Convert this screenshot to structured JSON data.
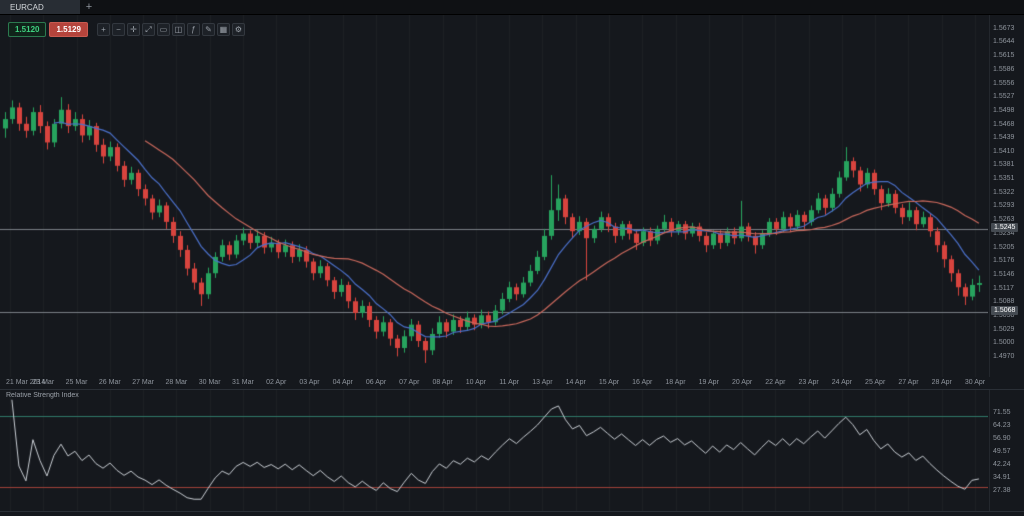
{
  "tabbar": {
    "active_tab": "EURCAD",
    "add_label": "+"
  },
  "quote": {
    "bid": "1.5120",
    "ask": "1.5129"
  },
  "toolbar": {
    "icons": [
      {
        "name": "zoom-in-icon",
        "glyph": "+"
      },
      {
        "name": "zoom-out-icon",
        "glyph": "−"
      },
      {
        "name": "crosshair-icon",
        "glyph": "✛"
      },
      {
        "name": "pan-icon",
        "glyph": "⤢"
      },
      {
        "name": "chart-type-icon",
        "glyph": "▭"
      },
      {
        "name": "timeframe-icon",
        "glyph": "◫"
      },
      {
        "name": "indicators-icon",
        "glyph": "ƒ"
      },
      {
        "name": "drawing-tools-icon",
        "glyph": "✎"
      },
      {
        "name": "grid-icon",
        "glyph": "▦"
      },
      {
        "name": "settings-icon",
        "glyph": "⚙"
      }
    ]
  },
  "colors": {
    "chart_bg": "#15181d",
    "grid": "rgba(255,255,255,0.035)",
    "candle_up": "#27a35e",
    "candle_down": "#d8443e",
    "level_line": "#7a7f86",
    "rsi_line": "#c9ced4",
    "overbought_line": "#2f7868",
    "oversold_line": "#a04038",
    "axis_text": "#8f959d",
    "sell_accent": "#3fd07f",
    "buy_accent": "#b5443c"
  },
  "chart_data": [
    {
      "type": "candlestick",
      "symbol": "EURCAD",
      "ylim": [
        1.4945,
        1.569
      ],
      "y_ticks": [
        "1.5673",
        "1.5644",
        "1.5615",
        "1.5586",
        "1.5556",
        "1.5527",
        "1.5498",
        "1.5468",
        "1.5439",
        "1.5410",
        "1.5381",
        "1.5351",
        "1.5322",
        "1.5293",
        "1.5263",
        "1.5234",
        "1.5205",
        "1.5176",
        "1.5146",
        "1.5117",
        "1.5088",
        "1.5058",
        "1.5029",
        "1.5000",
        "1.4970"
      ],
      "x_ticks": [
        "21 Mar 2014",
        "23 Mar",
        "25 Mar",
        "26 Mar",
        "27 Mar",
        "28 Mar",
        "30 Mar",
        "31 Mar",
        "02 Apr",
        "03 Apr",
        "04 Apr",
        "06 Apr",
        "07 Apr",
        "08 Apr",
        "10 Apr",
        "11 Apr",
        "13 Apr",
        "14 Apr",
        "15 Apr",
        "16 Apr",
        "18 Apr",
        "19 Apr",
        "20 Apr",
        "22 Apr",
        "23 Apr",
        "24 Apr",
        "25 Apr",
        "27 Apr",
        "28 Apr",
        "30 Apr"
      ],
      "levels": [
        {
          "price": 1.5245,
          "label": "1.5245"
        },
        {
          "price": 1.5068,
          "label": "1.5068"
        }
      ],
      "moving_averages": [
        {
          "name": "ma-fast",
          "period": 8,
          "color": "#4a6fc8"
        },
        {
          "name": "ma-slow",
          "period": 21,
          "color": "#c9685c"
        }
      ],
      "candles": [
        [
          1.546,
          1.5495,
          1.544,
          1.548
        ],
        [
          1.548,
          1.552,
          1.547,
          1.5505
        ],
        [
          1.5505,
          1.5515,
          1.5455,
          1.547
        ],
        [
          1.547,
          1.5485,
          1.544,
          1.5455
        ],
        [
          1.5455,
          1.5505,
          1.5445,
          1.5495
        ],
        [
          1.5495,
          1.551,
          1.545,
          1.5465
        ],
        [
          1.5465,
          1.5475,
          1.5415,
          1.543
        ],
        [
          1.543,
          1.548,
          1.542,
          1.547
        ],
        [
          1.547,
          1.5527,
          1.546,
          1.55
        ],
        [
          1.55,
          1.5512,
          1.545,
          1.5465
        ],
        [
          1.5465,
          1.5495,
          1.5455,
          1.548
        ],
        [
          1.548,
          1.549,
          1.543,
          1.5445
        ],
        [
          1.5445,
          1.5478,
          1.5435,
          1.5465
        ],
        [
          1.5465,
          1.5472,
          1.541,
          1.5425
        ],
        [
          1.5425,
          1.5438,
          1.5385,
          1.54
        ],
        [
          1.54,
          1.5432,
          1.539,
          1.542
        ],
        [
          1.542,
          1.5428,
          1.5368,
          1.538
        ],
        [
          1.538,
          1.539,
          1.5335,
          1.535
        ],
        [
          1.535,
          1.5378,
          1.534,
          1.5365
        ],
        [
          1.5365,
          1.5372,
          1.5315,
          1.533
        ],
        [
          1.533,
          1.534,
          1.5295,
          1.531
        ],
        [
          1.531,
          1.5318,
          1.5265,
          1.528
        ],
        [
          1.528,
          1.5308,
          1.527,
          1.5295
        ],
        [
          1.5295,
          1.5302,
          1.5245,
          1.526
        ],
        [
          1.526,
          1.527,
          1.5215,
          1.523
        ],
        [
          1.523,
          1.524,
          1.5185,
          1.52
        ],
        [
          1.52,
          1.521,
          1.5145,
          1.516
        ],
        [
          1.516,
          1.5172,
          1.5115,
          1.513
        ],
        [
          1.513,
          1.514,
          1.508,
          1.5105
        ],
        [
          1.5105,
          1.5162,
          1.5095,
          1.515
        ],
        [
          1.515,
          1.5195,
          1.514,
          1.5185
        ],
        [
          1.5185,
          1.5222,
          1.5175,
          1.521
        ],
        [
          1.521,
          1.5218,
          1.5178,
          1.519
        ],
        [
          1.519,
          1.5232,
          1.5182,
          1.522
        ],
        [
          1.522,
          1.5248,
          1.521,
          1.5235
        ],
        [
          1.5235,
          1.5242,
          1.5202,
          1.5215
        ],
        [
          1.5215,
          1.5242,
          1.5205,
          1.523
        ],
        [
          1.523,
          1.5238,
          1.5192,
          1.5205
        ],
        [
          1.5205,
          1.5228,
          1.5195,
          1.5215
        ],
        [
          1.5215,
          1.5222,
          1.5182,
          1.5195
        ],
        [
          1.5195,
          1.5222,
          1.5185,
          1.521
        ],
        [
          1.521,
          1.5218,
          1.5172,
          1.5185
        ],
        [
          1.5185,
          1.5212,
          1.5175,
          1.52
        ],
        [
          1.52,
          1.5208,
          1.5162,
          1.5175
        ],
        [
          1.5175,
          1.5182,
          1.5135,
          1.515
        ],
        [
          1.515,
          1.5178,
          1.514,
          1.5165
        ],
        [
          1.5165,
          1.5172,
          1.5122,
          1.5135
        ],
        [
          1.5135,
          1.5142,
          1.5095,
          1.511
        ],
        [
          1.511,
          1.5138,
          1.51,
          1.5125
        ],
        [
          1.5125,
          1.5132,
          1.5075,
          1.509
        ],
        [
          1.509,
          1.5098,
          1.505,
          1.5065
        ],
        [
          1.5065,
          1.5092,
          1.5055,
          1.508
        ],
        [
          1.508,
          1.5088,
          1.5035,
          1.505
        ],
        [
          1.505,
          1.5058,
          1.501,
          1.5025
        ],
        [
          1.5025,
          1.5058,
          1.5015,
          1.5045
        ],
        [
          1.5045,
          1.5052,
          1.4995,
          1.501
        ],
        [
          1.501,
          1.5018,
          1.4972,
          1.499
        ],
        [
          1.499,
          1.5028,
          1.498,
          1.5015
        ],
        [
          1.5015,
          1.5052,
          1.5005,
          1.504
        ],
        [
          1.504,
          1.5048,
          1.4992,
          1.5005
        ],
        [
          1.5005,
          1.5012,
          1.4958,
          1.4985
        ],
        [
          1.4985,
          1.5032,
          1.4975,
          1.502
        ],
        [
          1.502,
          1.5058,
          1.5012,
          1.5045
        ],
        [
          1.5045,
          1.5052,
          1.5012,
          1.5025
        ],
        [
          1.5025,
          1.5062,
          1.5018,
          1.505
        ],
        [
          1.505,
          1.5058,
          1.5022,
          1.5035
        ],
        [
          1.5035,
          1.5068,
          1.5028,
          1.5055
        ],
        [
          1.5055,
          1.5062,
          1.5028,
          1.504
        ],
        [
          1.504,
          1.5072,
          1.5032,
          1.506
        ],
        [
          1.506,
          1.5068,
          1.5032,
          1.5045
        ],
        [
          1.5045,
          1.5082,
          1.5038,
          1.507
        ],
        [
          1.507,
          1.5108,
          1.5062,
          1.5095
        ],
        [
          1.5095,
          1.5132,
          1.5088,
          1.512
        ],
        [
          1.512,
          1.5128,
          1.5092,
          1.5105
        ],
        [
          1.5105,
          1.5142,
          1.5098,
          1.513
        ],
        [
          1.513,
          1.5168,
          1.5122,
          1.5155
        ],
        [
          1.5155,
          1.5198,
          1.5148,
          1.5185
        ],
        [
          1.5185,
          1.5245,
          1.5178,
          1.523
        ],
        [
          1.523,
          1.536,
          1.5222,
          1.5285
        ],
        [
          1.5285,
          1.534,
          1.5262,
          1.531
        ],
        [
          1.531,
          1.5318,
          1.5255,
          1.527
        ],
        [
          1.527,
          1.5278,
          1.5225,
          1.524
        ],
        [
          1.524,
          1.5272,
          1.5232,
          1.526
        ],
        [
          1.526,
          1.5268,
          1.5135,
          1.5225
        ],
        [
          1.5225,
          1.5252,
          1.5215,
          1.5245
        ],
        [
          1.5245,
          1.5282,
          1.5238,
          1.527
        ],
        [
          1.527,
          1.5278,
          1.5238,
          1.525
        ],
        [
          1.525,
          1.5258,
          1.5215,
          1.523
        ],
        [
          1.523,
          1.5262,
          1.5222,
          1.5255
        ],
        [
          1.5255,
          1.5262,
          1.5222,
          1.5235
        ],
        [
          1.5235,
          1.5242,
          1.52,
          1.5215
        ],
        [
          1.5215,
          1.5248,
          1.5208,
          1.524
        ],
        [
          1.524,
          1.5248,
          1.5208,
          1.522
        ],
        [
          1.522,
          1.5252,
          1.5212,
          1.5245
        ],
        [
          1.5245,
          1.5275,
          1.5238,
          1.526
        ],
        [
          1.526,
          1.5268,
          1.5228,
          1.524
        ],
        [
          1.524,
          1.5262,
          1.5232,
          1.5255
        ],
        [
          1.5255,
          1.5262,
          1.5222,
          1.5235
        ],
        [
          1.5235,
          1.5258,
          1.5228,
          1.525
        ],
        [
          1.525,
          1.5258,
          1.5218,
          1.523
        ],
        [
          1.523,
          1.5238,
          1.5195,
          1.521
        ],
        [
          1.521,
          1.5242,
          1.5202,
          1.5235
        ],
        [
          1.5235,
          1.5242,
          1.5202,
          1.5215
        ],
        [
          1.5215,
          1.5248,
          1.5208,
          1.524
        ],
        [
          1.524,
          1.5248,
          1.5212,
          1.5225
        ],
        [
          1.5225,
          1.5305,
          1.5218,
          1.525
        ],
        [
          1.525,
          1.5258,
          1.5218,
          1.523
        ],
        [
          1.523,
          1.5238,
          1.5192,
          1.521
        ],
        [
          1.521,
          1.5242,
          1.5202,
          1.5235
        ],
        [
          1.5235,
          1.5268,
          1.5228,
          1.526
        ],
        [
          1.526,
          1.5268,
          1.5232,
          1.5245
        ],
        [
          1.5245,
          1.5282,
          1.5238,
          1.527
        ],
        [
          1.527,
          1.5278,
          1.5238,
          1.525
        ],
        [
          1.525,
          1.5285,
          1.5242,
          1.5275
        ],
        [
          1.5275,
          1.5282,
          1.5245,
          1.526
        ],
        [
          1.526,
          1.5295,
          1.5252,
          1.5285
        ],
        [
          1.5285,
          1.5322,
          1.5278,
          1.531
        ],
        [
          1.531,
          1.5318,
          1.5275,
          1.529
        ],
        [
          1.529,
          1.5332,
          1.5282,
          1.532
        ],
        [
          1.532,
          1.5368,
          1.5312,
          1.5355
        ],
        [
          1.5355,
          1.542,
          1.5348,
          1.539
        ],
        [
          1.539,
          1.5398,
          1.5355,
          1.537
        ],
        [
          1.537,
          1.5378,
          1.5325,
          1.534
        ],
        [
          1.534,
          1.5375,
          1.5332,
          1.5365
        ],
        [
          1.5365,
          1.5372,
          1.5318,
          1.533
        ],
        [
          1.533,
          1.5338,
          1.5285,
          1.53
        ],
        [
          1.53,
          1.5332,
          1.5292,
          1.532
        ],
        [
          1.532,
          1.5328,
          1.5278,
          1.529
        ],
        [
          1.529,
          1.5298,
          1.5255,
          1.527
        ],
        [
          1.527,
          1.5302,
          1.5262,
          1.5285
        ],
        [
          1.5285,
          1.5292,
          1.5242,
          1.5255
        ],
        [
          1.5255,
          1.5282,
          1.5248,
          1.527
        ],
        [
          1.527,
          1.5278,
          1.5228,
          1.524
        ],
        [
          1.524,
          1.5248,
          1.5195,
          1.521
        ],
        [
          1.521,
          1.5218,
          1.5162,
          1.518
        ],
        [
          1.518,
          1.5188,
          1.5132,
          1.515
        ],
        [
          1.515,
          1.5158,
          1.5102,
          1.512
        ],
        [
          1.512,
          1.5128,
          1.5082,
          1.51
        ],
        [
          1.51,
          1.5138,
          1.5092,
          1.5125
        ],
        [
          1.5125,
          1.5145,
          1.511,
          1.5129
        ]
      ]
    },
    {
      "type": "line",
      "title": "Relative Strength Index",
      "derived": "RSI of candle closes",
      "period": 14,
      "range": [
        22,
        80
      ],
      "overbought": 70,
      "oversold": 30,
      "y_ticks": [
        "71.55",
        "64.23",
        "56.90",
        "49.57",
        "42.24",
        "34.91",
        "27.38"
      ]
    }
  ]
}
